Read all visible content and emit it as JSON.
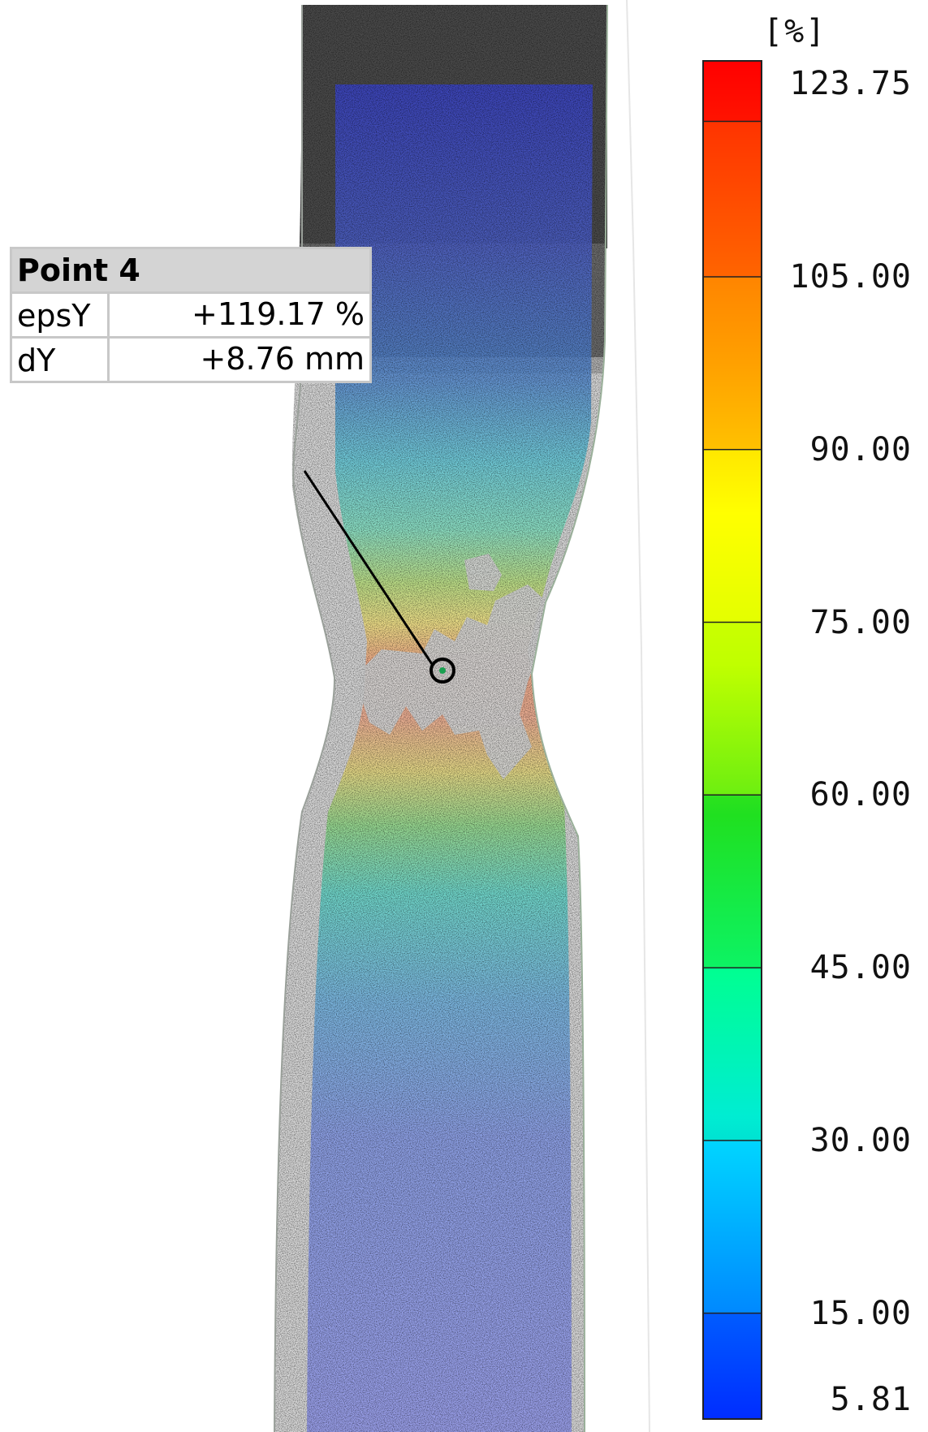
{
  "colorbar": {
    "unit": "[%]",
    "max": 123.75,
    "min": 5.81,
    "ticks": [
      "123.75",
      "105.00",
      "90.00",
      "75.00",
      "60.00",
      "45.00",
      "30.00",
      "15.00",
      "5.81"
    ],
    "colors": [
      "#0000ff",
      "#0070ff",
      "#00e0ff",
      "#00ff90",
      "#20e020",
      "#c0ff00",
      "#ffff00",
      "#ffa000",
      "#ff5000",
      "#ff0000"
    ]
  },
  "point_box": {
    "title": "Point 4",
    "rows": [
      {
        "key": "epsY",
        "value": "+119.17 %"
      },
      {
        "key": "dY",
        "value": "+8.76 mm"
      }
    ]
  }
}
